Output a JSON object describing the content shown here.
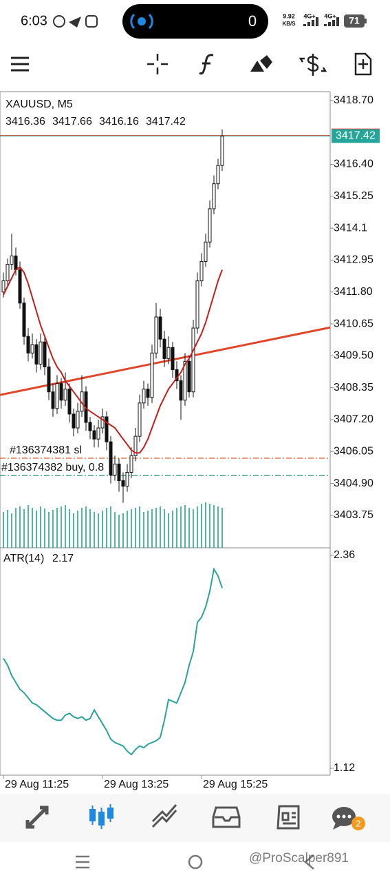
{
  "status_bar": {
    "time": "6:03",
    "pill_count": "0",
    "net_speed": "9.92",
    "net_unit": "KB/S",
    "sig1": "4G+",
    "sig2": "4G+",
    "battery": "71"
  },
  "chart_data": {
    "type": "candlestick",
    "title": "XAUUSD, M5",
    "categories": [
      "29 Aug 11:25",
      null,
      null,
      null,
      null,
      null,
      null,
      null,
      null,
      null,
      null,
      null,
      null,
      null,
      null,
      null,
      null,
      null,
      null,
      null,
      null,
      null,
      null,
      null,
      "29 Aug 13:25",
      null,
      null,
      null,
      null,
      null,
      null,
      null,
      null,
      null,
      null,
      null,
      null,
      null,
      null,
      null,
      null,
      null,
      null,
      null,
      null,
      null,
      null,
      null,
      "29 Aug 15:25",
      null,
      null,
      null,
      null,
      null
    ],
    "ohlc": [
      [
        3411.8,
        3412.5,
        3411.6,
        3412.2
      ],
      [
        3412.2,
        3413.0,
        3412.0,
        3412.8
      ],
      [
        3412.8,
        3413.9,
        3412.6,
        3413.1
      ],
      [
        3413.1,
        3413.4,
        3412.4,
        3412.6
      ],
      [
        3412.6,
        3412.9,
        3411.2,
        3411.4
      ],
      [
        3411.4,
        3411.6,
        3409.9,
        3410.2
      ],
      [
        3410.2,
        3410.5,
        3409.3,
        3409.6
      ],
      [
        3409.6,
        3410.3,
        3409.4,
        3409.9
      ],
      [
        3409.9,
        3410.1,
        3408.9,
        3409.2
      ],
      [
        3409.2,
        3410.3,
        3409.0,
        3410.0
      ],
      [
        3410.0,
        3410.2,
        3408.8,
        3409.1
      ],
      [
        3409.1,
        3409.4,
        3407.9,
        3408.2
      ],
      [
        3408.2,
        3408.5,
        3407.3,
        3407.6
      ],
      [
        3407.6,
        3408.8,
        3407.4,
        3408.5
      ],
      [
        3408.5,
        3408.7,
        3407.6,
        3407.9
      ],
      [
        3407.9,
        3408.9,
        3407.7,
        3408.3
      ],
      [
        3408.3,
        3408.5,
        3407.1,
        3407.4
      ],
      [
        3407.4,
        3407.6,
        3406.6,
        3406.9
      ],
      [
        3406.9,
        3407.8,
        3406.7,
        3407.5
      ],
      [
        3407.5,
        3408.8,
        3407.3,
        3408.2
      ],
      [
        3408.2,
        3408.4,
        3406.8,
        3407.1
      ],
      [
        3407.1,
        3407.3,
        3406.5,
        3406.8
      ],
      [
        3406.8,
        3407.0,
        3406.2,
        3406.5
      ],
      [
        3406.5,
        3407.2,
        3406.2,
        3406.9
      ],
      [
        3406.9,
        3407.6,
        3406.7,
        3407.3
      ],
      [
        3407.3,
        3407.5,
        3406.1,
        3406.4
      ],
      [
        3406.4,
        3406.6,
        3404.9,
        3405.2
      ],
      [
        3405.2,
        3405.9,
        3405.0,
        3405.6
      ],
      [
        3405.6,
        3405.8,
        3404.6,
        3405.0
      ],
      [
        3405.0,
        3405.3,
        3404.2,
        3404.8
      ],
      [
        3404.8,
        3405.6,
        3404.6,
        3405.3
      ],
      [
        3405.3,
        3406.2,
        3405.1,
        3405.9
      ],
      [
        3405.9,
        3406.9,
        3405.7,
        3406.6
      ],
      [
        3406.6,
        3408.1,
        3406.4,
        3407.8
      ],
      [
        3407.8,
        3408.6,
        3407.6,
        3408.3
      ],
      [
        3408.3,
        3408.5,
        3407.7,
        3408.0
      ],
      [
        3408.0,
        3409.9,
        3407.8,
        3409.6
      ],
      [
        3409.6,
        3411.4,
        3409.4,
        3410.9
      ],
      [
        3410.9,
        3411.2,
        3409.8,
        3410.1
      ],
      [
        3410.1,
        3410.4,
        3409.1,
        3409.4
      ],
      [
        3409.4,
        3410.2,
        3409.2,
        3409.8
      ],
      [
        3409.8,
        3410.0,
        3408.7,
        3409.0
      ],
      [
        3409.0,
        3409.3,
        3408.3,
        3408.6
      ],
      [
        3408.6,
        3408.8,
        3407.2,
        3407.9
      ],
      [
        3407.9,
        3409.6,
        3407.7,
        3409.3
      ],
      [
        3409.3,
        3409.5,
        3408.0,
        3408.2
      ],
      [
        3408.2,
        3410.8,
        3408.0,
        3410.5
      ],
      [
        3410.5,
        3412.5,
        3410.3,
        3412.2
      ],
      [
        3412.2,
        3413.2,
        3412.0,
        3412.9
      ],
      [
        3412.9,
        3413.9,
        3412.7,
        3413.6
      ],
      [
        3413.6,
        3415.1,
        3413.4,
        3414.8
      ],
      [
        3414.8,
        3416.0,
        3414.6,
        3415.7
      ],
      [
        3415.7,
        3416.6,
        3415.5,
        3416.36
      ],
      [
        3416.36,
        3417.66,
        3416.16,
        3417.42
      ]
    ],
    "ylim": [
      3402.58,
      3419.02
    ],
    "yticks": [
      {
        "value": 3418.7,
        "label": "3418.70"
      },
      {
        "value": 3416.4,
        "label": "3416.40"
      },
      3415.25,
      3414.1,
      3412.95,
      {
        "value": 3411.8,
        "label": "3411.80"
      },
      3410.65,
      {
        "value": 3409.5,
        "label": "3409.50"
      },
      3408.35,
      {
        "value": 3407.2,
        "label": "3407.20"
      },
      3406.05,
      {
        "value": 3404.9,
        "label": "3404.90"
      },
      3403.75
    ],
    "ma": {
      "color": "#c41e1a",
      "values": [
        3411.7,
        3412.0,
        3412.3,
        3412.6,
        3412.7,
        3412.5,
        3412.1,
        3411.6,
        3411.1,
        3410.6,
        3410.2,
        3409.8,
        3409.4,
        3409.1,
        3408.9,
        3408.6,
        3408.4,
        3408.2,
        3408.0,
        3407.8,
        3407.6,
        3407.5,
        3407.4,
        3407.3,
        3407.2,
        3407.1,
        3407.0,
        3406.9,
        3406.7,
        3406.5,
        3406.3,
        3406.1,
        3406.0,
        3406.0,
        3406.2,
        3406.5,
        3406.9,
        3407.3,
        3407.7,
        3408.0,
        3408.3,
        3408.5,
        3408.7,
        3408.9,
        3409.2,
        3409.4,
        3409.7,
        3410.0,
        3410.3,
        3410.7,
        3411.2,
        3411.7,
        3412.2,
        3412.6
      ]
    },
    "trendline": {
      "color": "#e0472a",
      "values": [
        3408.09,
        3410.52
      ]
    },
    "volumes": {
      "color": "#1a9c8c",
      "values": [
        52,
        55,
        50,
        58,
        60,
        56,
        62,
        58,
        54,
        60,
        57,
        52,
        55,
        58,
        60,
        62,
        56,
        50,
        54,
        58,
        60,
        56,
        52,
        50,
        54,
        58,
        60,
        52,
        48,
        50,
        54,
        56,
        58,
        60,
        52,
        54,
        56,
        58,
        60,
        56,
        50,
        54,
        58,
        60,
        62,
        58,
        56,
        60,
        64,
        66,
        64,
        62,
        60,
        58
      ]
    },
    "ask": {
      "value": 3417.44,
      "color": "#e53935"
    },
    "bid_color": "#26a69a",
    "orders": [
      {
        "label": "#136374381 sl",
        "value": 3405.81,
        "color": "#e0602b"
      },
      {
        "label": "#136374382 buy, 0.8",
        "value": 3405.19,
        "color": "#1b8a6b"
      }
    ],
    "atr": {
      "label": "ATR(14)",
      "color": "#2aa39a",
      "ylim": [
        1.12,
        2.36
      ],
      "yticks": [
        2.36,
        1.12
      ],
      "values": [
        1.76,
        1.72,
        1.66,
        1.62,
        1.58,
        1.56,
        1.53,
        1.5,
        1.49,
        1.47,
        1.45,
        1.43,
        1.41,
        1.4,
        1.4,
        1.43,
        1.44,
        1.42,
        1.41,
        1.42,
        1.4,
        1.41,
        1.46,
        1.42,
        1.38,
        1.34,
        1.29,
        1.27,
        1.26,
        1.25,
        1.22,
        1.2,
        1.23,
        1.25,
        1.24,
        1.26,
        1.27,
        1.28,
        1.3,
        1.4,
        1.52,
        1.51,
        1.5,
        1.56,
        1.62,
        1.72,
        1.8,
        1.97,
        2.0,
        2.06,
        2.15,
        2.28,
        2.24,
        2.17
      ]
    }
  },
  "bottom_nav": {
    "chat_badge": "2"
  },
  "watermark": "@ProScalper891"
}
